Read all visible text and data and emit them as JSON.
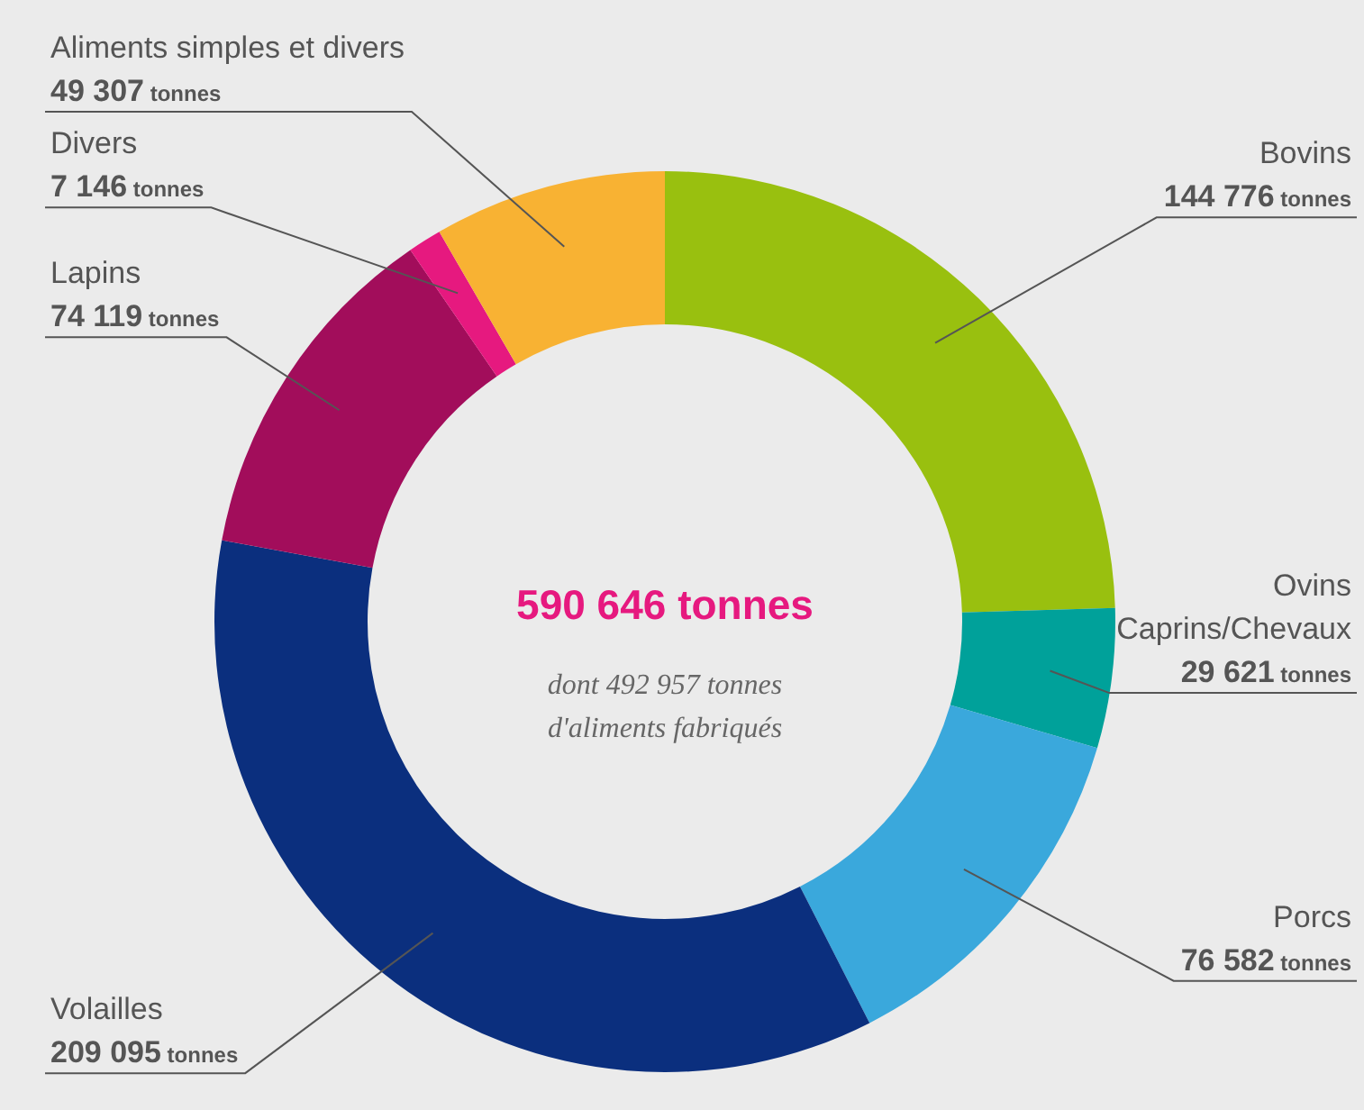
{
  "chart_data": {
    "type": "donut",
    "title": "590 646 tonnes",
    "subtitle": "dont 492 957 tonnes d'aliments fabriqués",
    "categories": [
      "Bovins",
      "Ovins\nCaprins/Chevaux",
      "Porcs",
      "Volailles",
      "Lapins",
      "Divers",
      "Aliments simples et divers"
    ],
    "values": [
      144776,
      29621,
      76582,
      209095,
      74119,
      7146,
      49307
    ],
    "colors": [
      "#99c00f",
      "#00a19a",
      "#3aa8dc",
      "#0b2f7e",
      "#a20d5b",
      "#e6197f",
      "#f8b233"
    ],
    "value_labels": [
      "144 776 tonnes",
      "29 621 tonnes",
      "76 582 tonnes",
      "209 095 tonnes",
      "74 119 tonnes",
      "7 146 tonnes",
      "49 307 tonnes"
    ],
    "legend": false
  }
}
